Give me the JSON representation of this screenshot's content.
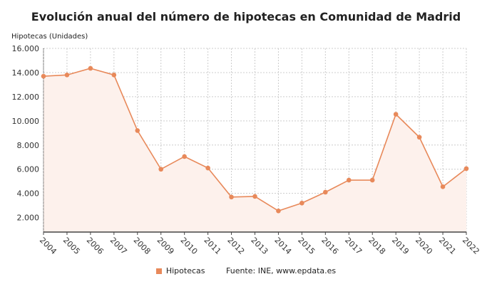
{
  "chart_data": {
    "type": "line",
    "title": "Evolución anual del número de hipotecas en Comunidad de Madrid",
    "ylabel": "Hipotecas (Unidades)",
    "xlabel": "",
    "ylim": [
      800,
      16000
    ],
    "yticks": [
      "2.000",
      "4.000",
      "6.000",
      "8.000",
      "10.000",
      "12.000",
      "14.000",
      "16.000"
    ],
    "ytick_values": [
      2000,
      4000,
      6000,
      8000,
      10000,
      12000,
      14000,
      16000
    ],
    "categories": [
      "2004",
      "2005",
      "2006",
      "2007",
      "2008",
      "2009",
      "2010",
      "2011",
      "2012",
      "2013",
      "2014",
      "2015",
      "2016",
      "2017",
      "2018",
      "2019",
      "2020",
      "2021",
      "2022"
    ],
    "series": [
      {
        "name": "Hipotecas",
        "color": "#e8895a",
        "values": [
          13700,
          13800,
          14350,
          13800,
          9200,
          6000,
          7050,
          6100,
          3700,
          3750,
          2550,
          3200,
          4100,
          5100,
          5100,
          10550,
          8650,
          4550,
          6050
        ]
      }
    ],
    "grid": true,
    "legend": "bottom"
  },
  "source": "Fuente: INE, www.epdata.es"
}
